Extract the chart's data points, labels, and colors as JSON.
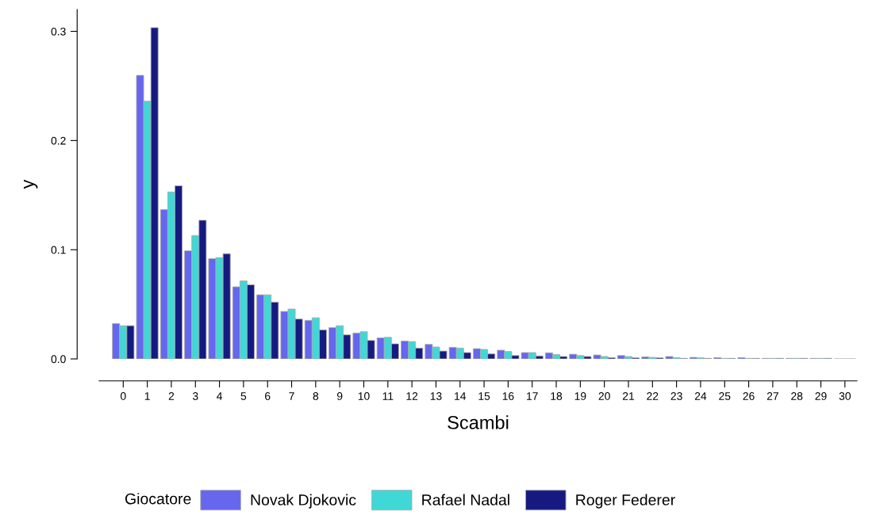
{
  "chart_data": {
    "type": "bar",
    "xlabel": "Scambi",
    "ylabel": "y",
    "legend_title": "Giocatore",
    "legend": "bottom",
    "grid": false,
    "categories": [
      "0",
      "1",
      "2",
      "3",
      "4",
      "5",
      "6",
      "7",
      "8",
      "9",
      "10",
      "11",
      "12",
      "13",
      "14",
      "15",
      "16",
      "17",
      "18",
      "19",
      "20",
      "21",
      "22",
      "23",
      "24",
      "25",
      "26",
      "27",
      "28",
      "29",
      "30"
    ],
    "ylim": [
      0,
      0.32
    ],
    "yticks": [
      {
        "value": 0,
        "label": "0.0"
      },
      0.1,
      0.2,
      0.3
    ],
    "series": [
      {
        "name": "Novak Djokovic",
        "color": "#6666ee",
        "values": [
          0.0324,
          0.2597,
          0.1367,
          0.099,
          0.0918,
          0.066,
          0.0587,
          0.0435,
          0.0353,
          0.0287,
          0.0237,
          0.0193,
          0.0164,
          0.0133,
          0.0106,
          0.0094,
          0.008,
          0.0058,
          0.0056,
          0.0043,
          0.0036,
          0.0031,
          0.0019,
          0.0022,
          0.0014,
          0.0012,
          0.0012,
          0.0005,
          0.0005,
          0.0005,
          null
        ]
      },
      {
        "name": "Rafael Nadal",
        "color": "#40d8d6",
        "values": [
          0.0304,
          0.236,
          0.1529,
          0.113,
          0.0928,
          0.0715,
          0.0587,
          0.0457,
          0.0377,
          0.0304,
          0.0249,
          0.0198,
          0.0159,
          0.0109,
          0.0099,
          0.0087,
          0.0068,
          0.0058,
          0.0041,
          0.0031,
          0.0022,
          0.0022,
          0.0014,
          0.0012,
          0.001,
          0.0005,
          0.0005,
          0.0005,
          0.0005,
          0.0005,
          null
        ]
      },
      {
        "name": "Roger Federer",
        "color": "#161a80",
        "values": [
          0.0304,
          0.3034,
          0.1585,
          0.127,
          0.0964,
          0.0679,
          0.052,
          0.0365,
          0.0266,
          0.022,
          0.0169,
          0.0138,
          0.0099,
          0.0072,
          0.0058,
          0.0046,
          0.0031,
          0.0027,
          0.0022,
          0.0022,
          0.0012,
          0.001,
          0.001,
          0.0005,
          0.0005,
          0.0005,
          0.0005,
          0.0005,
          0.0005,
          0.0005,
          null
        ]
      }
    ]
  }
}
